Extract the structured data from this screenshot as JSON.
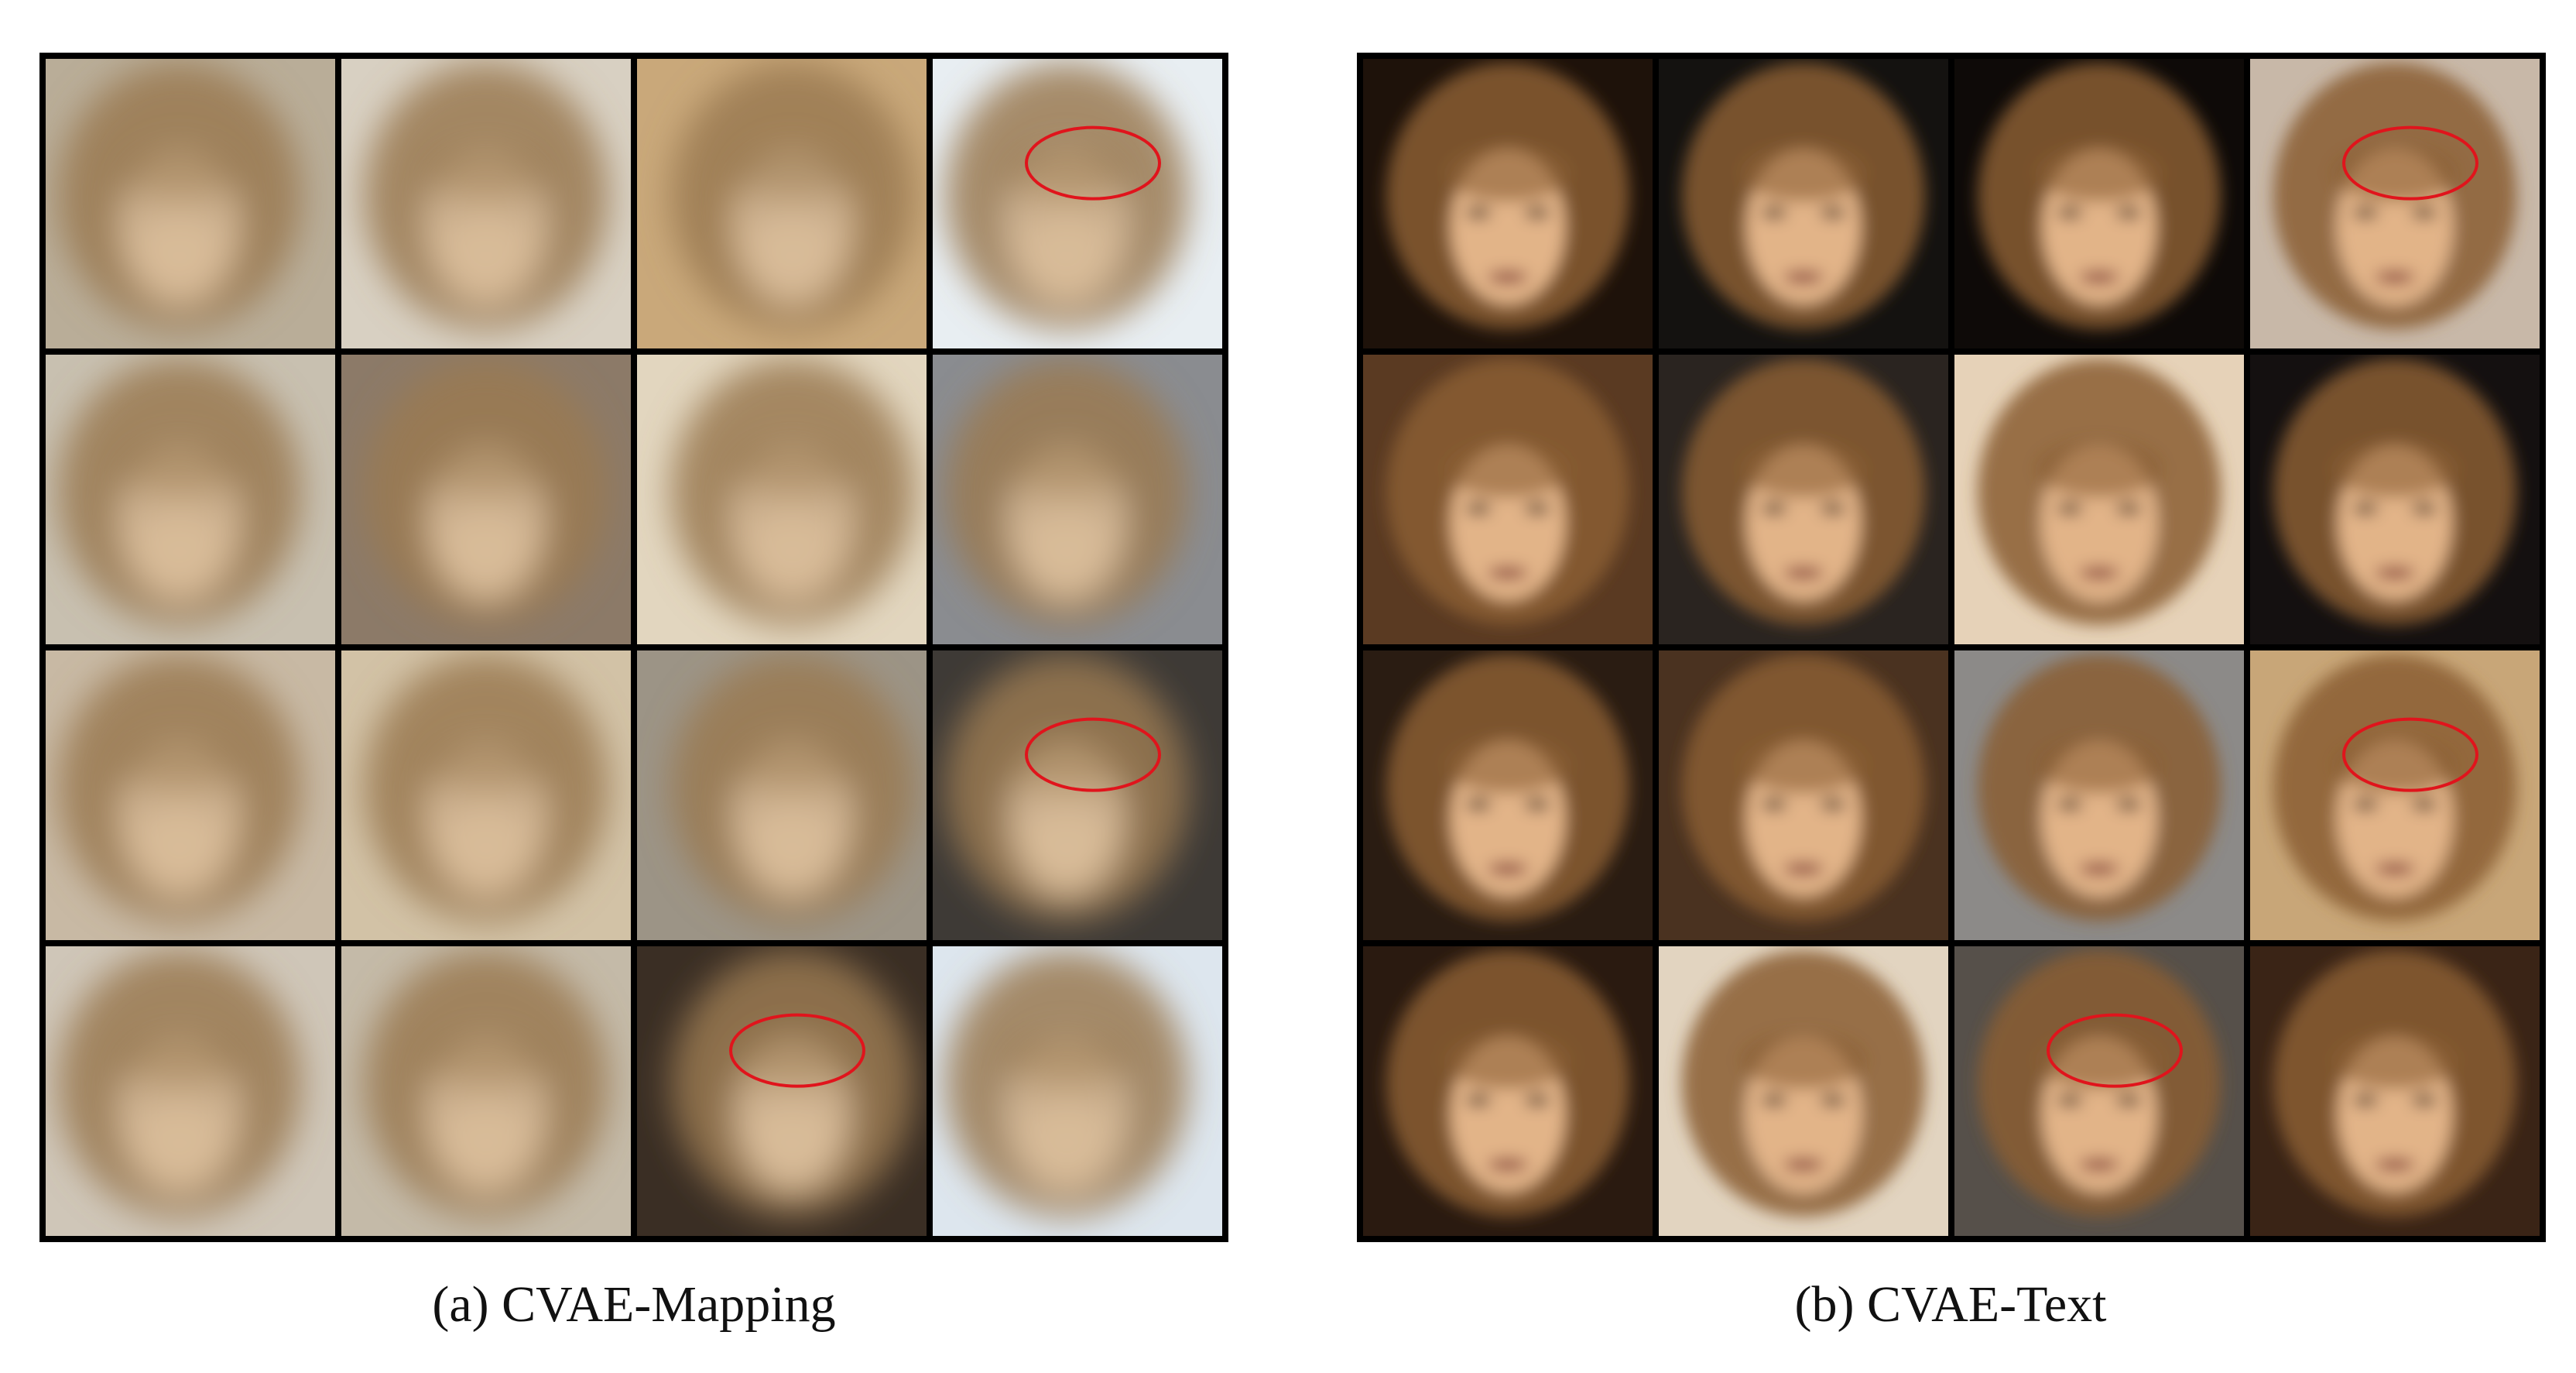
{
  "figure": {
    "panels": [
      {
        "caption": "(a) CVAE-Mapping"
      },
      {
        "caption": "(b) CVAE-Text"
      }
    ]
  }
}
